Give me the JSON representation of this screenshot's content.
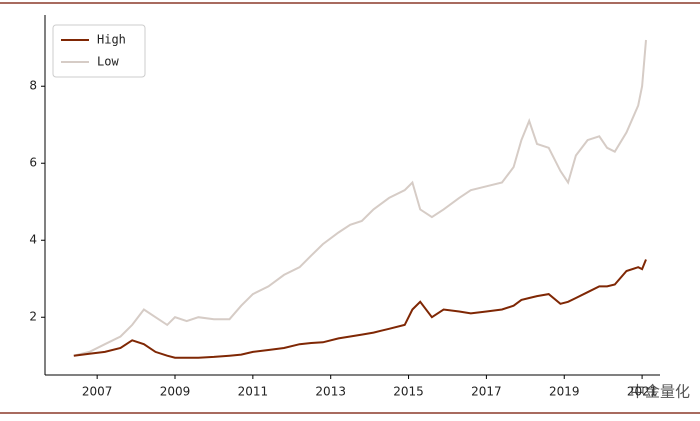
{
  "chart_data": {
    "type": "line",
    "x": [
      2006.4,
      2006.8,
      2007.2,
      2007.6,
      2007.9,
      2008.2,
      2008.5,
      2008.8,
      2009.0,
      2009.3,
      2009.6,
      2010.0,
      2010.4,
      2010.7,
      2011.0,
      2011.4,
      2011.8,
      2012.2,
      2012.5,
      2012.8,
      2013.2,
      2013.5,
      2013.8,
      2014.1,
      2014.5,
      2014.9,
      2015.1,
      2015.3,
      2015.6,
      2015.9,
      2016.3,
      2016.6,
      2017.0,
      2017.4,
      2017.7,
      2017.9,
      2018.1,
      2018.3,
      2018.6,
      2018.9,
      2019.1,
      2019.3,
      2019.6,
      2019.9,
      2020.1,
      2020.3,
      2020.6,
      2020.9,
      2021.0,
      2021.1
    ],
    "series": [
      {
        "name": "High",
        "color": "#7f2704",
        "values": [
          1.0,
          1.05,
          1.1,
          1.2,
          1.4,
          1.3,
          1.1,
          1.0,
          0.95,
          0.95,
          0.95,
          0.97,
          1.0,
          1.03,
          1.1,
          1.15,
          1.2,
          1.3,
          1.33,
          1.35,
          1.45,
          1.5,
          1.55,
          1.6,
          1.7,
          1.8,
          2.2,
          2.4,
          2.0,
          2.2,
          2.15,
          2.1,
          2.15,
          2.2,
          2.3,
          2.45,
          2.5,
          2.55,
          2.6,
          2.35,
          2.4,
          2.5,
          2.65,
          2.8,
          2.8,
          2.85,
          3.2,
          3.3,
          3.25,
          3.5
        ]
      },
      {
        "name": "Low",
        "color": "#d6ccc6",
        "values": [
          1.0,
          1.1,
          1.3,
          1.5,
          1.8,
          2.2,
          2.0,
          1.8,
          2.0,
          1.9,
          2.0,
          1.95,
          1.95,
          2.3,
          2.6,
          2.8,
          3.1,
          3.3,
          3.6,
          3.9,
          4.2,
          4.4,
          4.5,
          4.8,
          5.1,
          5.3,
          5.5,
          4.8,
          4.6,
          4.8,
          5.1,
          5.3,
          5.4,
          5.5,
          5.9,
          6.6,
          7.1,
          6.5,
          6.4,
          5.8,
          5.5,
          6.2,
          6.6,
          6.7,
          6.4,
          6.3,
          6.8,
          7.5,
          8.0,
          9.2
        ]
      }
    ],
    "xlim": [
      2005.66,
      2021.46
    ],
    "xticks": [
      2007,
      2009,
      2011,
      2013,
      2015,
      2017,
      2019,
      2021
    ],
    "ylim": [
      0.5,
      9.85
    ],
    "yticks": [
      2,
      4,
      6,
      8
    ],
    "legend": "upper left",
    "watermark": "中金量化"
  }
}
